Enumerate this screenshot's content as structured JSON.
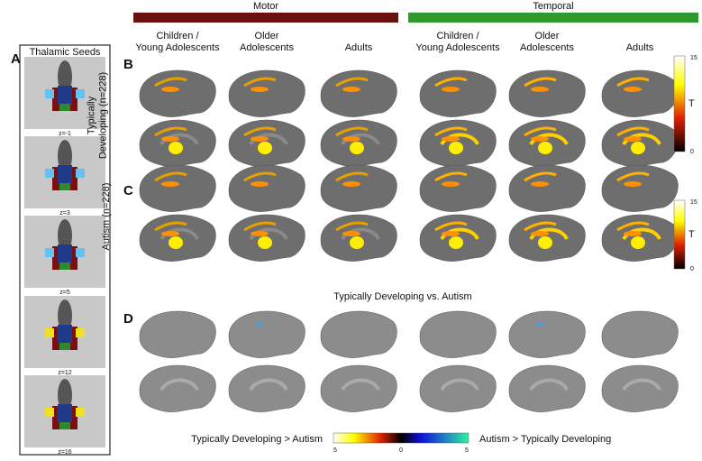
{
  "panel_labels": [
    "A",
    "B",
    "C",
    "D"
  ],
  "seeds": {
    "title": "Thalamic Seeds",
    "slices": [
      "z=-1",
      "z=3",
      "z=5",
      "z=12",
      "z=16"
    ]
  },
  "groups": [
    "Motor",
    "Temporal"
  ],
  "columns": [
    [
      "Children /",
      "Young Adolescents"
    ],
    [
      "Older",
      "Adolescents"
    ],
    [
      "Adults"
    ],
    [
      "Children /",
      "Young Adolescents"
    ],
    [
      "Older",
      "Adolescents"
    ],
    [
      "Adults"
    ]
  ],
  "rows": [
    [
      "Typically",
      "Developing (n=228)"
    ],
    [
      "Autism (n=228)"
    ]
  ],
  "colorbar": {
    "max": 15,
    "unit": "T",
    "min": 0
  },
  "comparison": {
    "title": "Typically Developing vs. Autism",
    "left": "Typically Developing > Autism",
    "right": "Autism > Typically Developing",
    "ticks": [
      5,
      0,
      5
    ]
  }
}
